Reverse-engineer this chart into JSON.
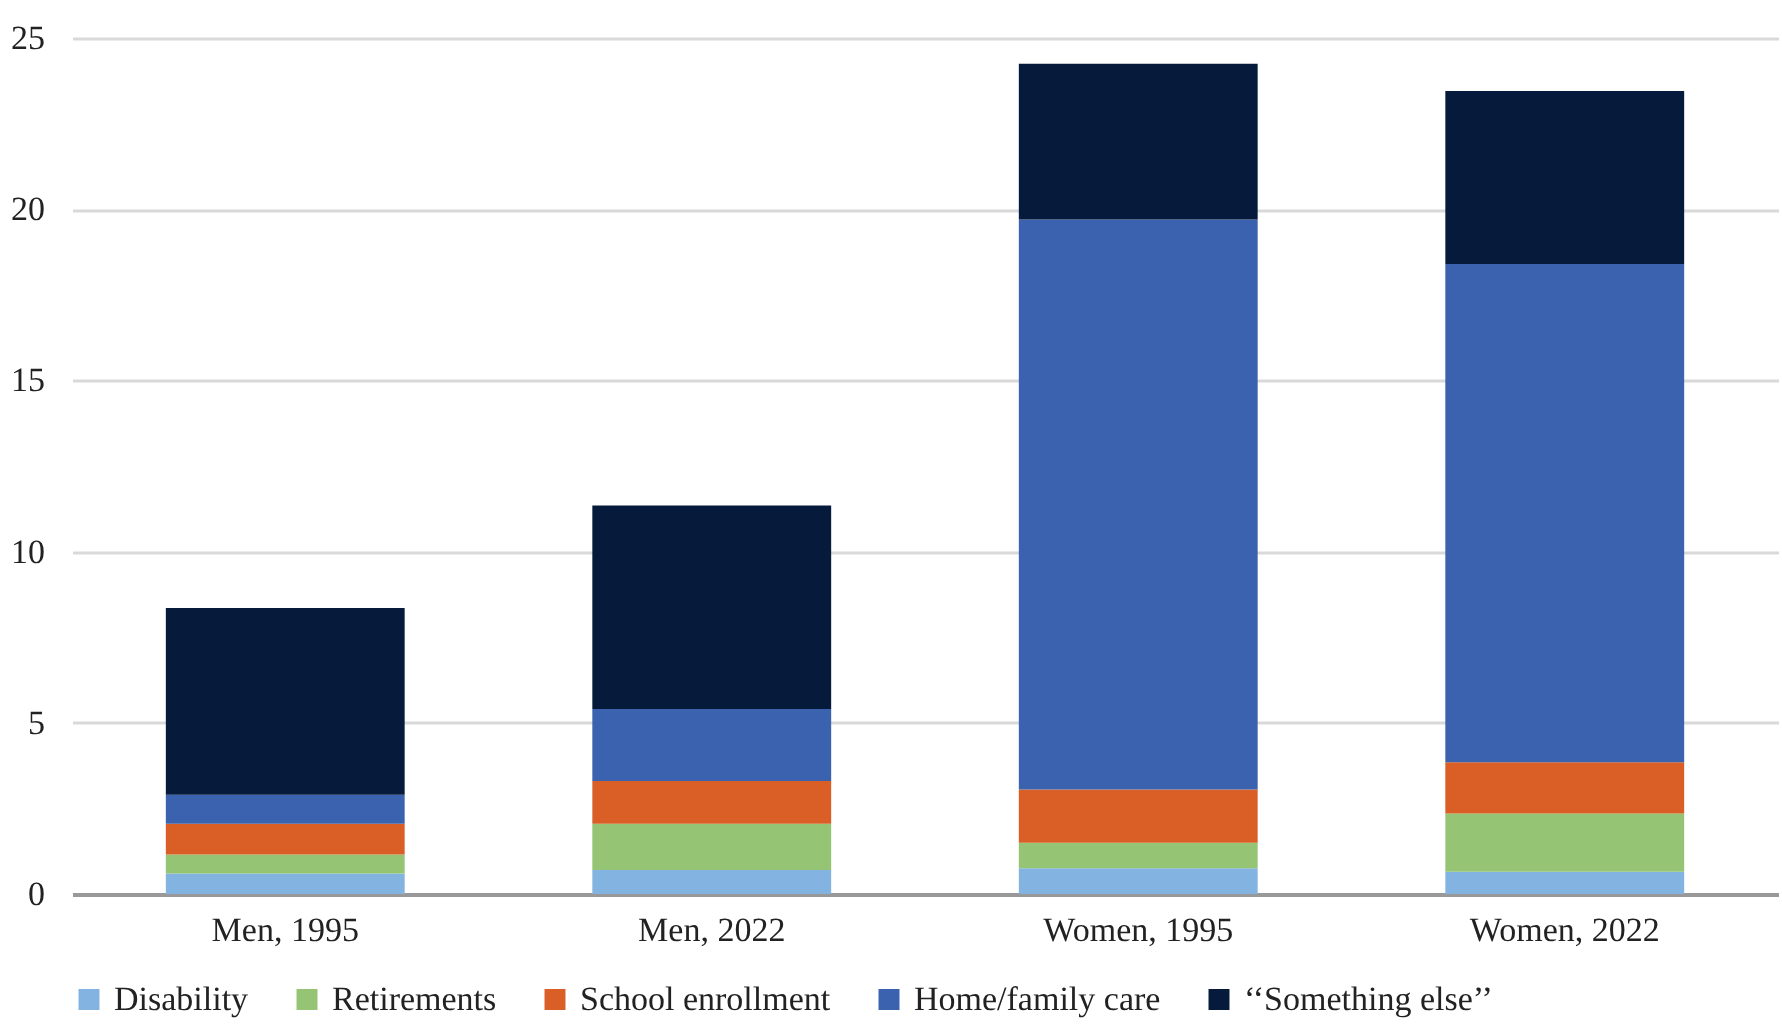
{
  "chart_data": {
    "type": "bar",
    "stacked": true,
    "categories": [
      "Men, 1995",
      "Men, 2022",
      "Women, 1995",
      "Women, 2022"
    ],
    "series": [
      {
        "name": "Disability",
        "color": "#83b3e0",
        "values": [
          0.6,
          0.7,
          0.75,
          0.65
        ]
      },
      {
        "name": "Retirements",
        "color": "#95c574",
        "values": [
          0.55,
          1.35,
          0.75,
          1.7
        ]
      },
      {
        "name": "School enrollment",
        "color": "#d95f27",
        "values": [
          0.9,
          1.25,
          1.55,
          1.5
        ]
      },
      {
        "name": "Home/family care",
        "color": "#3a62ae",
        "values": [
          0.85,
          2.1,
          16.65,
          14.55
        ]
      },
      {
        "name": "‘‘Something else’’",
        "color": "#061a3b",
        "values": [
          5.45,
          5.95,
          4.55,
          5.05
        ]
      }
    ],
    "ylim": [
      0,
      25
    ],
    "yticks": [
      0,
      5,
      10,
      15,
      20,
      25
    ],
    "grid": "y",
    "legend": "bottom"
  }
}
